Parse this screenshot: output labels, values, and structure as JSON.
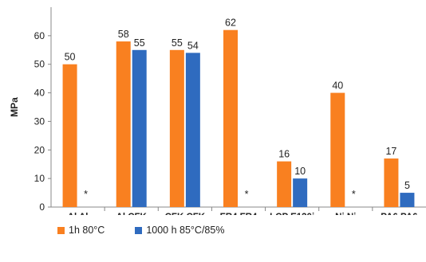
{
  "chart_data": {
    "type": "bar",
    "ylabel": "MPa",
    "ylim": [
      0,
      70
    ],
    "yticks": [
      0,
      10,
      20,
      30,
      40,
      50,
      60
    ],
    "grid": false,
    "legend_position": "bottom",
    "categories": [
      [
        "Al Al"
      ],
      [
        "Al CFK"
      ],
      [
        "CFK CFK"
      ],
      [
        "FR4 FR4"
      ],
      [
        "LCP E130i",
        "LCP E130i"
      ],
      [
        "Ni Ni"
      ],
      [
        "PA6 PA6"
      ]
    ],
    "series": [
      {
        "name": "1h 80°C",
        "color": "#f98020",
        "values": [
          50,
          58,
          55,
          62,
          16,
          40,
          17
        ]
      },
      {
        "name": "1000 h 85°C/85%",
        "color": "#2f6bbf",
        "values": [
          null,
          55,
          54,
          null,
          10,
          null,
          5
        ]
      }
    ],
    "missing_marker": "*"
  }
}
